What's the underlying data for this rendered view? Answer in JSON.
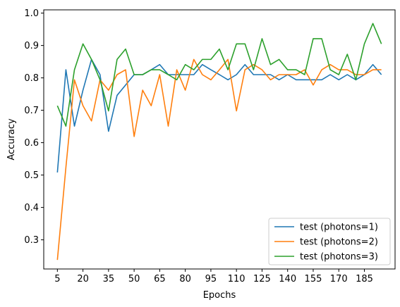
{
  "chart_data": {
    "type": "line",
    "title": "",
    "xlabel": "Epochs",
    "ylabel": "Accuracy",
    "xlim": [
      -3,
      203
    ],
    "ylim": [
      0.21,
      1.01
    ],
    "xticks": [
      5,
      20,
      35,
      50,
      65,
      80,
      95,
      110,
      125,
      140,
      155,
      170,
      185
    ],
    "yticks": [
      0.3,
      0.4,
      0.5,
      0.6,
      0.7,
      0.8,
      0.9,
      1.0
    ],
    "ytick_labels": [
      "0.3",
      "0.4",
      "0.5",
      "0.6",
      "0.7",
      "0.8",
      "0.9",
      "1.0"
    ],
    "grid": false,
    "legend_position": "lower-right",
    "x": [
      5,
      10,
      15,
      20,
      25,
      30,
      35,
      40,
      45,
      50,
      55,
      60,
      65,
      70,
      75,
      80,
      85,
      90,
      95,
      100,
      105,
      110,
      115,
      120,
      125,
      130,
      135,
      140,
      145,
      150,
      155,
      160,
      165,
      170,
      175,
      180,
      185,
      190,
      195
    ],
    "series": [
      {
        "name": "test (photons=1)",
        "color": "#1f77b4",
        "values": [
          0.508,
          0.825,
          0.651,
          0.762,
          0.857,
          0.81,
          0.635,
          0.746,
          0.778,
          0.81,
          0.81,
          0.825,
          0.841,
          0.81,
          0.81,
          0.81,
          0.81,
          0.841,
          0.825,
          0.81,
          0.794,
          0.81,
          0.841,
          0.81,
          0.81,
          0.81,
          0.794,
          0.81,
          0.794,
          0.794,
          0.794,
          0.794,
          0.81,
          0.794,
          0.81,
          0.794,
          0.81,
          0.841,
          0.81
        ]
      },
      {
        "name": "test (photons=2)",
        "color": "#ff7f0e",
        "values": [
          0.238,
          0.524,
          0.794,
          0.714,
          0.667,
          0.794,
          0.762,
          0.81,
          0.825,
          0.619,
          0.762,
          0.714,
          0.81,
          0.651,
          0.825,
          0.762,
          0.857,
          0.81,
          0.794,
          0.825,
          0.857,
          0.698,
          0.825,
          0.841,
          0.825,
          0.794,
          0.81,
          0.81,
          0.81,
          0.825,
          0.778,
          0.825,
          0.841,
          0.825,
          0.825,
          0.81,
          0.81,
          0.825,
          0.825
        ]
      },
      {
        "name": "test (photons=3)",
        "color": "#2ca02c",
        "values": [
          0.714,
          0.651,
          0.825,
          0.905,
          0.857,
          0.794,
          0.698,
          0.857,
          0.889,
          0.81,
          0.81,
          0.825,
          0.825,
          0.81,
          0.794,
          0.841,
          0.825,
          0.857,
          0.857,
          0.889,
          0.825,
          0.905,
          0.905,
          0.825,
          0.921,
          0.841,
          0.857,
          0.825,
          0.825,
          0.81,
          0.921,
          0.921,
          0.825,
          0.81,
          0.873,
          0.794,
          0.905,
          0.968,
          0.905
        ]
      }
    ]
  }
}
